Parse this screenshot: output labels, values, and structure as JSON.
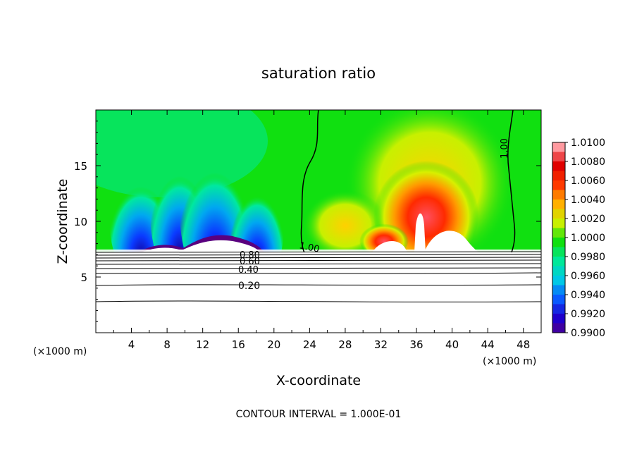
{
  "chart_data": {
    "type": "heatmap",
    "title": "saturation ratio",
    "xlabel": "X-coordinate",
    "ylabel": "Z-coordinate",
    "x_unit_left": "(×1000 m)",
    "x_unit_right": "(×1000 m)",
    "xlim": [
      0,
      50
    ],
    "ylim": [
      0,
      20
    ],
    "x_ticks": [
      4,
      8,
      12,
      16,
      20,
      24,
      28,
      32,
      36,
      40,
      44,
      48
    ],
    "y_ticks": [
      5,
      10,
      15
    ],
    "footer": "CONTOUR INTERVAL = 1.000E-01",
    "colorbar": {
      "min": 0.99,
      "max": 1.01,
      "levels": [
        {
          "value": "0.9900",
          "color": "#5a007f"
        },
        {
          "value": "0.9920",
          "color": "#1f00cc"
        },
        {
          "value": "0.9940",
          "color": "#0a5aff"
        },
        {
          "value": "0.9960",
          "color": "#00c8e6"
        },
        {
          "value": "0.9980",
          "color": "#00e89a"
        },
        {
          "value": "1.0000",
          "color": "#10e010"
        },
        {
          "value": "1.0020",
          "color": "#c8f000"
        },
        {
          "value": "1.0040",
          "color": "#ffb000"
        },
        {
          "value": "1.0060",
          "color": "#ff3a00"
        },
        {
          "value": "1.0080",
          "color": "#e00000"
        },
        {
          "value": "1.0100",
          "color": "#ff9aa0"
        }
      ]
    },
    "contour_lines": [
      {
        "label": "1.00",
        "description": "left saturation contour near x=22-25"
      },
      {
        "label": "1.00",
        "description": "right saturation contour near x=46-48"
      },
      {
        "label": "0.80",
        "z": 6.9
      },
      {
        "label": "0.60",
        "z": 6.5
      },
      {
        "label": "0.40",
        "z": 6.0
      },
      {
        "label": "0.20",
        "z": 4.7
      }
    ]
  }
}
